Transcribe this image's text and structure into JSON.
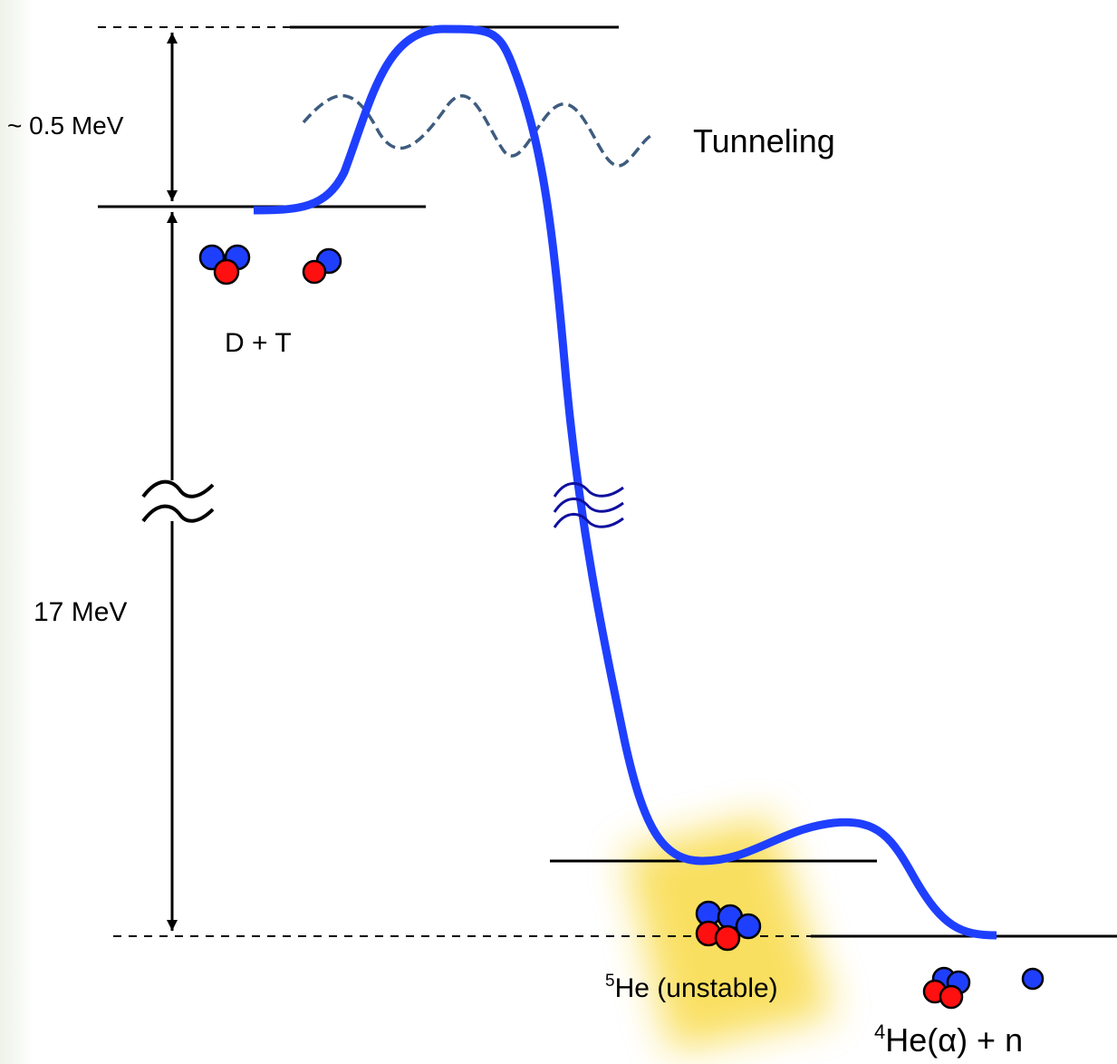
{
  "labels": {
    "barrier": "~ 0.5 MeV",
    "tunneling": "Tunneling",
    "reactants": "D + T",
    "energy": "17 MeV",
    "intermediate": {
      "sup": "5",
      "text": "He (unstable)"
    },
    "products": {
      "sup": "4",
      "text": "He(α) + n"
    }
  }
}
